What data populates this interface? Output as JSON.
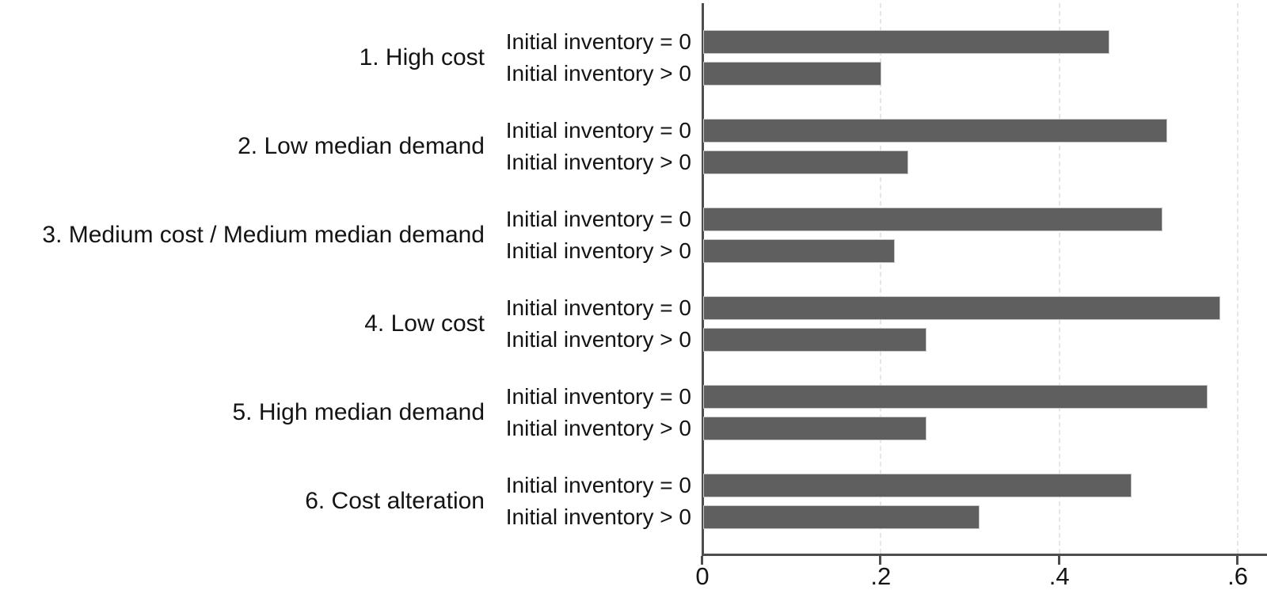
{
  "chart_data": {
    "type": "bar",
    "orientation": "horizontal",
    "title": "",
    "series_labels": [
      "Initial inventory = 0",
      "Initial inventory > 0"
    ],
    "categories": [
      "1. High cost",
      "2. Low median demand",
      "3. Medium cost / Medium median demand",
      "4. Low cost",
      "5. High median demand",
      "6. Cost alteration"
    ],
    "groups": [
      {
        "label": "1. High cost",
        "values": [
          0.455,
          0.2
        ]
      },
      {
        "label": "2. Low median demand",
        "values": [
          0.52,
          0.23
        ]
      },
      {
        "label": "3. Medium cost / Medium median demand",
        "values": [
          0.515,
          0.215
        ]
      },
      {
        "label": "4. Low cost",
        "values": [
          0.58,
          0.25
        ]
      },
      {
        "label": "5. High median demand",
        "values": [
          0.565,
          0.25
        ]
      },
      {
        "label": "6. Cost alteration",
        "values": [
          0.48,
          0.31
        ]
      }
    ],
    "x_axis": {
      "ticks": [
        0,
        0.2,
        0.4,
        0.6
      ],
      "tick_labels": [
        "0",
        ".2",
        ".4",
        ".6"
      ],
      "range": [
        0,
        0.633
      ],
      "gridlines": [
        0.2,
        0.4,
        0.6
      ],
      "grid_style": "dashed"
    },
    "legend_position": "none",
    "colors": {
      "bar_fill": "#5f5f5f",
      "bar_outline": "#c6c6c6",
      "gridline": "#e6e6e6",
      "axis_line": "#4d4d4d",
      "text": "#141414",
      "background": "#ffffff"
    }
  }
}
